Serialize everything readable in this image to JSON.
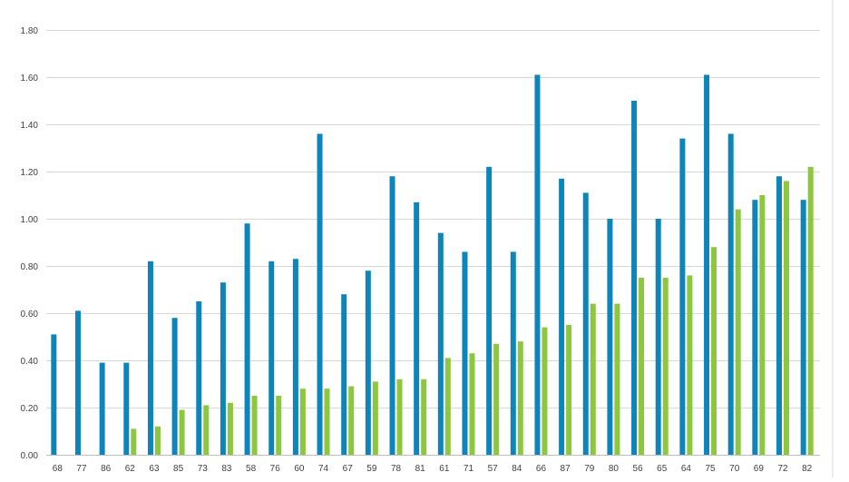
{
  "chart_data": {
    "type": "bar",
    "title": "",
    "xlabel": "",
    "ylabel": "",
    "ylim": [
      0,
      1.8
    ],
    "yticks": [
      "0.00",
      "0.20",
      "0.40",
      "0.60",
      "0.80",
      "1.00",
      "1.20",
      "1.40",
      "1.60",
      "1.80"
    ],
    "grid": true,
    "legend": "none",
    "categories": [
      "68",
      "77",
      "86",
      "62",
      "63",
      "85",
      "73",
      "83",
      "58",
      "76",
      "60",
      "74",
      "67",
      "59",
      "78",
      "81",
      "61",
      "71",
      "57",
      "84",
      "66",
      "87",
      "79",
      "80",
      "56",
      "65",
      "64",
      "75",
      "70",
      "69",
      "72",
      "82"
    ],
    "series": [
      {
        "color": "#0e85b8",
        "values": [
          0.51,
          0.61,
          0.39,
          0.39,
          0.82,
          0.58,
          0.65,
          0.73,
          0.98,
          0.82,
          0.83,
          1.36,
          0.68,
          0.78,
          1.18,
          1.07,
          0.94,
          0.86,
          1.22,
          0.86,
          1.61,
          1.17,
          1.11,
          1.0,
          1.5,
          1.0,
          1.34,
          1.61,
          1.36,
          1.08,
          1.18,
          1.08
        ]
      },
      {
        "color": "#8dc63f",
        "values": [
          0,
          0,
          0,
          0.11,
          0.12,
          0.19,
          0.21,
          0.22,
          0.25,
          0.25,
          0.28,
          0.28,
          0.29,
          0.31,
          0.32,
          0.32,
          0.41,
          0.43,
          0.47,
          0.48,
          0.54,
          0.55,
          0.64,
          0.64,
          0.75,
          0.75,
          0.76,
          0.88,
          1.04,
          1.1,
          1.16,
          1.22
        ]
      }
    ]
  },
  "colors": {
    "grid": "#d9d9d9",
    "axis": "#bfbfbf",
    "tick_text": "#404040",
    "frame": "#d9d9d9"
  }
}
